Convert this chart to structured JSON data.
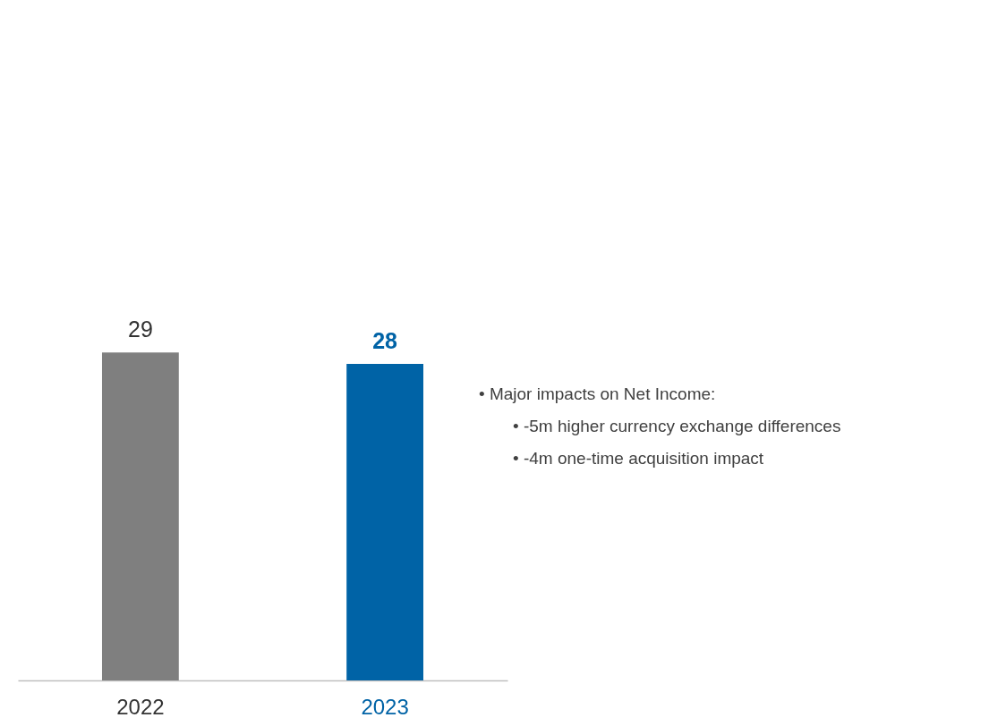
{
  "chart_data": {
    "type": "bar",
    "categories": [
      "2022",
      "2023"
    ],
    "values": [
      29,
      28
    ],
    "colors": [
      "#7f7f7f",
      "#0063a6"
    ],
    "data_labels": true,
    "annotations": [
      "• Major impacts on Net Income:",
      "• -5m higher currency exchange differences",
      "• -4m one-time acquisition impact"
    ]
  }
}
